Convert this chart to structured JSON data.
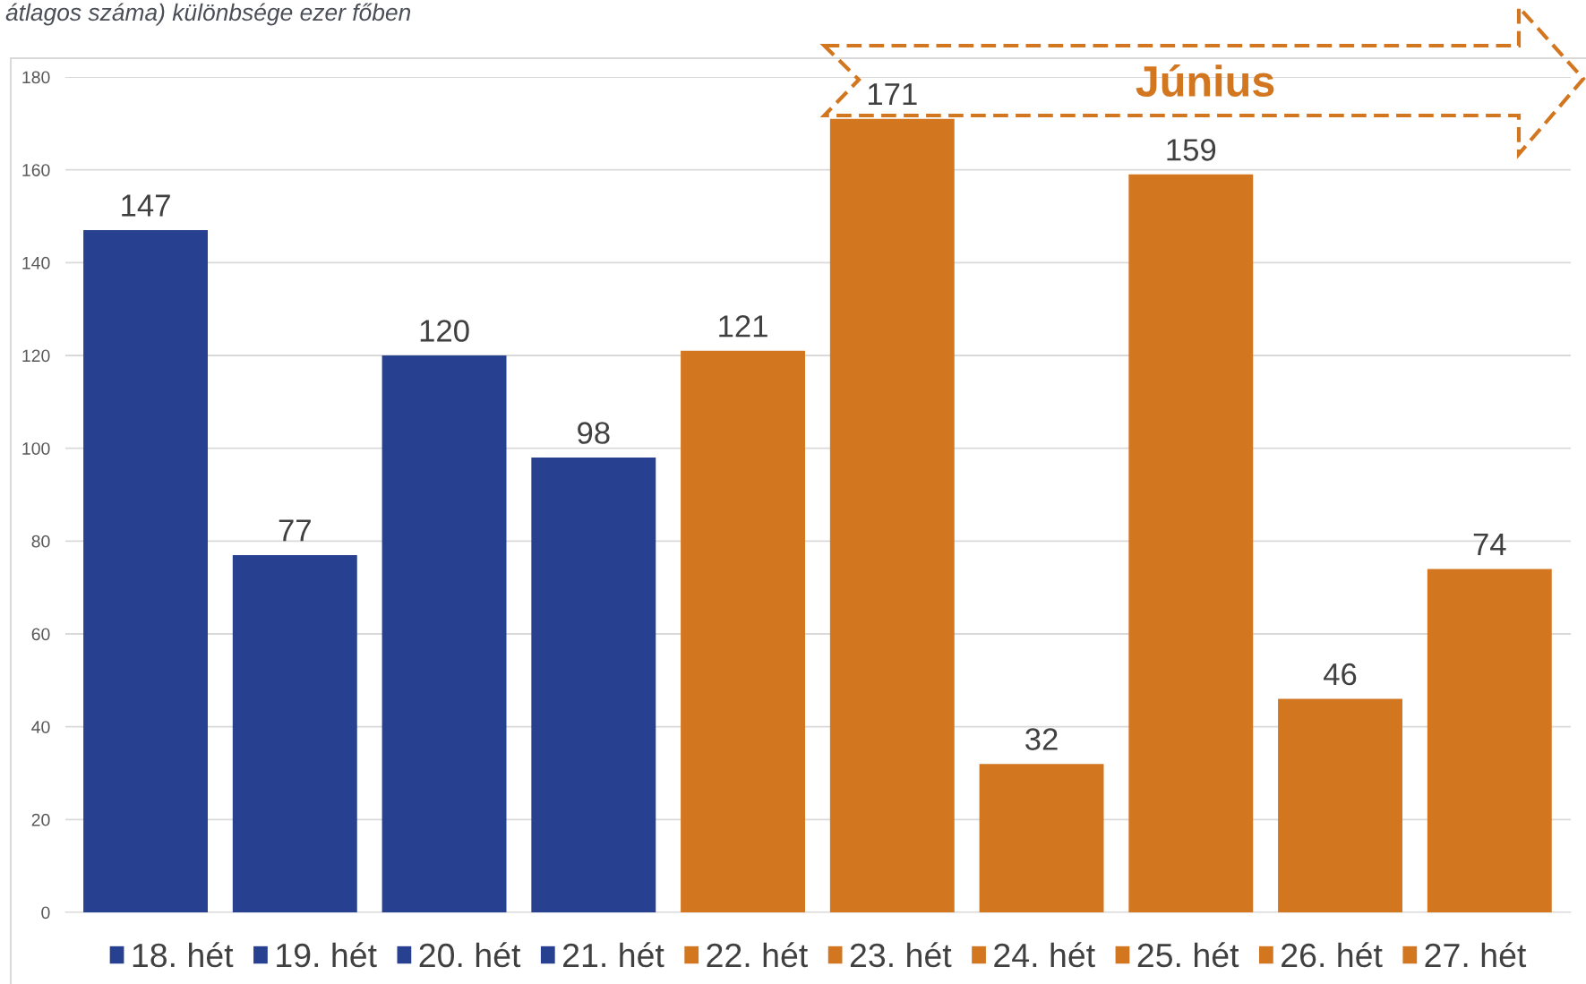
{
  "chart_data": {
    "type": "bar",
    "title": "átlagos száma) különbsége ezer főben",
    "categories": [
      null
    ],
    "series": [
      {
        "name": "18. hét",
        "color": "#27408f",
        "values": [
          147
        ]
      },
      {
        "name": "19. hét",
        "color": "#27408f",
        "values": [
          77
        ]
      },
      {
        "name": "20. hét",
        "color": "#27408f",
        "values": [
          120
        ]
      },
      {
        "name": "21. hét",
        "color": "#27408f",
        "values": [
          98
        ]
      },
      {
        "name": "22. hét",
        "color": "#d37620",
        "values": [
          121
        ]
      },
      {
        "name": "23. hét",
        "color": "#d37620",
        "values": [
          171
        ]
      },
      {
        "name": "24. hét",
        "color": "#d37620",
        "values": [
          32
        ]
      },
      {
        "name": "25. hét",
        "color": "#d37620",
        "values": [
          159
        ]
      },
      {
        "name": "26. hét",
        "color": "#d37620",
        "values": [
          46
        ]
      },
      {
        "name": "27. hét",
        "color": "#d37620",
        "values": [
          74
        ]
      }
    ],
    "annotations": [
      "Június"
    ],
    "ylim": [
      0,
      180
    ],
    "yticks": [
      0,
      20,
      40,
      60,
      80,
      100,
      120,
      140,
      160,
      180
    ],
    "grid": "y",
    "data_labels": true,
    "legend": "bottom"
  }
}
